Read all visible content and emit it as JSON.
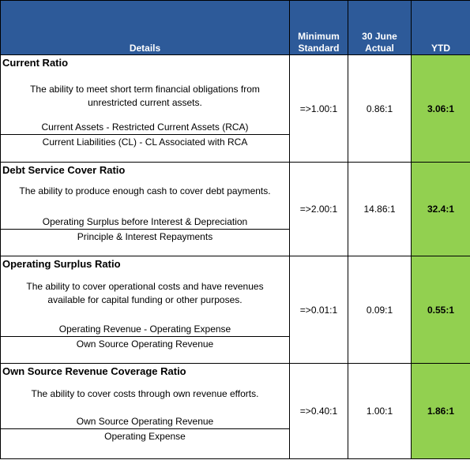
{
  "header": {
    "details": "Details",
    "minimum_line1": "Minimum",
    "minimum_line2": "Standard",
    "actual_line1": "30 June",
    "actual_line2": "Actual",
    "ytd": "YTD"
  },
  "colors": {
    "header_bg": "#2d5a99",
    "header_text": "#ffffff",
    "ytd_bg": "#92d050"
  },
  "rows": [
    {
      "title": "Current Ratio",
      "description": "The ability to meet short term financial obligations from unrestricted current assets.",
      "numerator": "Current Assets - Restricted Current Assets (RCA)",
      "denominator": "Current Liabilities (CL) - CL Associated with RCA",
      "minimum": "=>1.00:1",
      "actual": "0.86:1",
      "ytd": "3.06:1"
    },
    {
      "title": "Debt Service Cover Ratio",
      "description": "The ability to produce enough cash to cover debt payments.",
      "numerator": "Operating Surplus before Interest & Depreciation",
      "denominator": "Principle & Interest Repayments",
      "minimum": "=>2.00:1",
      "actual": "14.86:1",
      "ytd": "32.4:1"
    },
    {
      "title": "Operating Surplus Ratio",
      "description": "The ability to cover operational costs and have revenues available for capital funding or other purposes.",
      "numerator": "Operating Revenue - Operating Expense",
      "denominator": "Own Source Operating Revenue",
      "minimum": "=>0.01:1",
      "actual": "0.09:1",
      "ytd": "0.55:1"
    },
    {
      "title": "Own Source Revenue Coverage Ratio",
      "description": "The ability to cover costs through own revenue efforts.",
      "numerator": "Own Source Operating Revenue",
      "denominator": "Operating Expense",
      "minimum": "=>0.40:1",
      "actual": "1.00:1",
      "ytd": "1.86:1"
    }
  ]
}
